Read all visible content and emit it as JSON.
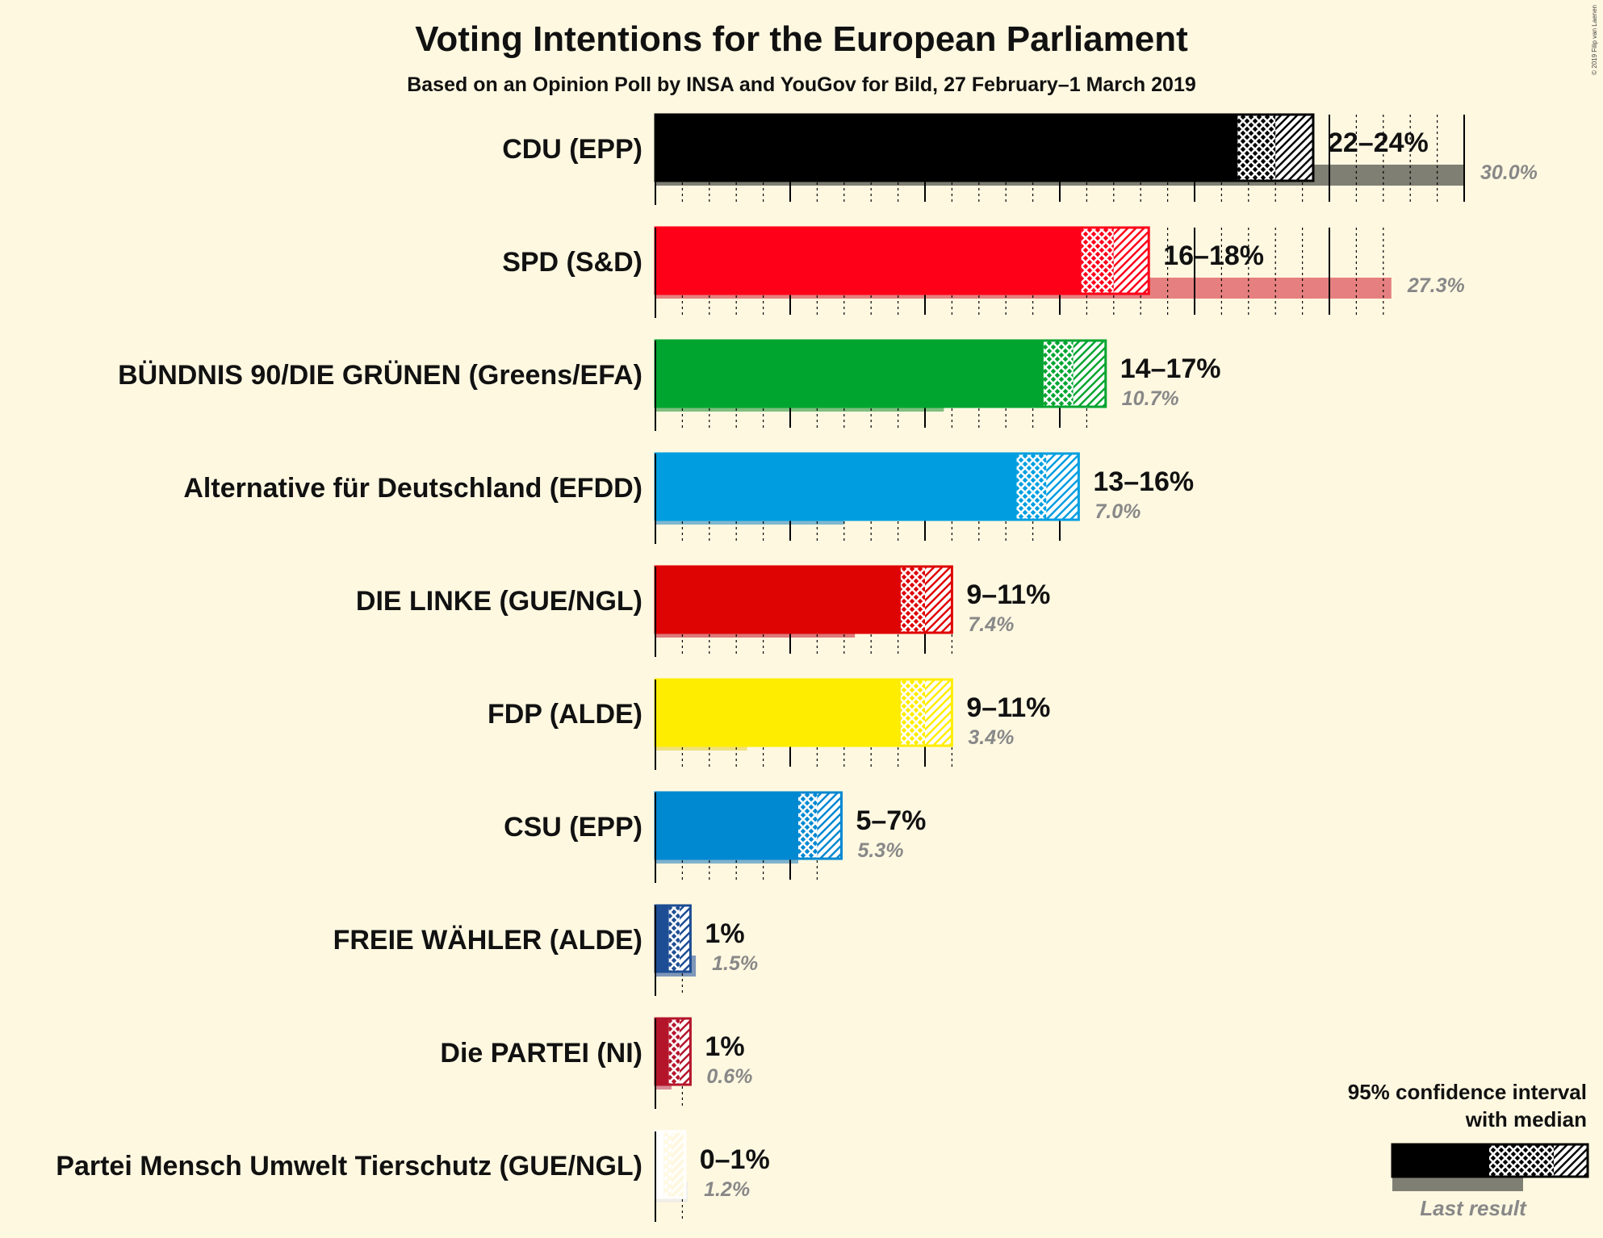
{
  "chart_data": {
    "type": "bar",
    "orientation": "horizontal",
    "title": "Voting Intentions for the European Parliament",
    "subtitle": "Based on an Opinion Poll by INSA and YouGov for Bild, 27 February–1 March 2019",
    "copyright": "© 2019 Filip van Laenen",
    "series": [
      {
        "party": "CDU (EPP)",
        "color": "#000000",
        "last_color": "#7f7f74",
        "ci_low": 21.6,
        "median": 23.0,
        "ci_high": 24.4,
        "range_label": "22–24%",
        "last_result": 30.0,
        "last_label": "30.0%"
      },
      {
        "party": "SPD (S&D)",
        "color": "#FF0019",
        "last_color": "#E68080",
        "ci_low": 15.8,
        "median": 17.0,
        "ci_high": 18.3,
        "range_label": "16–18%",
        "last_result": 27.3,
        "last_label": "27.3%"
      },
      {
        "party": "BÜNDNIS 90/DIE GRÜNEN (Greens/EFA)",
        "color": "#00A530",
        "last_color": "#7FBF7F",
        "ci_low": 14.4,
        "median": 15.5,
        "ci_high": 16.7,
        "range_label": "14–17%",
        "last_result": 10.7,
        "last_label": "10.7%"
      },
      {
        "party": "Alternative für Deutschland (EFDD)",
        "color": "#009EE0",
        "last_color": "#80B7CF",
        "ci_low": 13.4,
        "median": 14.5,
        "ci_high": 15.7,
        "range_label": "13–16%",
        "last_result": 7.0,
        "last_label": "7.0%"
      },
      {
        "party": "DIE LINKE (GUE/NGL)",
        "color": "#DF0404",
        "last_color": "#DD7A7A",
        "ci_low": 9.1,
        "median": 10.0,
        "ci_high": 11.0,
        "range_label": "9–11%",
        "last_result": 7.4,
        "last_label": "7.4%"
      },
      {
        "party": "FDP (ALDE)",
        "color": "#FFED00",
        "last_color": "#EFE080",
        "ci_low": 9.1,
        "median": 10.0,
        "ci_high": 11.0,
        "range_label": "9–11%",
        "last_result": 3.4,
        "last_label": "3.4%"
      },
      {
        "party": "CSU (EPP)",
        "color": "#0088D1",
        "last_color": "#80B1CB",
        "ci_low": 5.3,
        "median": 6.0,
        "ci_high": 6.9,
        "range_label": "5–7%",
        "last_result": 5.3,
        "last_label": "5.3%"
      },
      {
        "party": "FREIE WÄHLER (ALDE)",
        "color": "#1D4D94",
        "last_color": "#7F97B8",
        "ci_low": 0.5,
        "median": 0.9,
        "ci_high": 1.3,
        "range_label": "1%",
        "last_result": 1.5,
        "last_label": "1.5%"
      },
      {
        "party": "Die PARTEI (NI)",
        "color": "#B5152B",
        "last_color": "#D88A95",
        "ci_low": 0.5,
        "median": 0.9,
        "ci_high": 1.3,
        "range_label": "1%",
        "last_result": 0.6,
        "last_label": "0.6%"
      },
      {
        "party": "Partei Mensch Umwelt Tierschutz (GUE/NGL)",
        "color": "#FFFFFF",
        "last_color": "#F0EEE6",
        "ci_low": 0.3,
        "median": 0.6,
        "ci_high": 1.1,
        "range_label": "0–1%",
        "last_result": 1.2,
        "last_label": "1.2%"
      }
    ],
    "legend": {
      "line1": "95% confidence interval",
      "line2": "with median",
      "last": "Last result"
    },
    "xlim": [
      0,
      30
    ],
    "grid": true
  }
}
